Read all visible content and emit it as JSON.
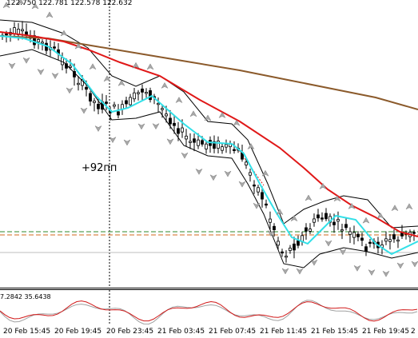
{
  "quote": {
    "ohlc": "122.750 122.781 122.578 122.632"
  },
  "annotation": {
    "text": "+92пп"
  },
  "oscillator": {
    "values": "7.2842 35.6438"
  },
  "time_axis": {
    "labels": [
      "20 Feb 15:45",
      "20 Feb 19:45",
      "20 Feb 23:45",
      "21 Feb 03:45",
      "21 Feb 07:45",
      "21 Feb 11:45",
      "21 Feb 15:45",
      "21 Feb 19:45",
      "2"
    ]
  },
  "colors": {
    "background": "#ffffff",
    "candles": "#000000",
    "fast_ma": "#33e0e8",
    "mid_ma": "#e01818",
    "slow_ma": "#8b5a2b",
    "envelope": "#000000",
    "fractals": "#a8a8a8",
    "level_green": "#2e8b2e",
    "level_orange": "#d2691e",
    "osc_red": "#d01818",
    "osc_gray": "#a0a0a0"
  },
  "icons": [
    "fractal-up-marker",
    "fractal-down-marker"
  ]
}
